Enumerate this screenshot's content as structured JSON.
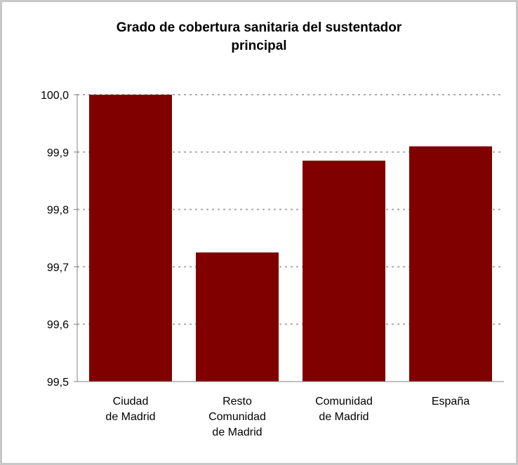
{
  "chart_data": {
    "type": "bar",
    "title_lines": [
      "Grado de cobertura sanitaria del sustentador",
      "principal"
    ],
    "categories": [
      [
        "Ciudad",
        "de Madrid"
      ],
      [
        "Resto",
        "Comunidad",
        "de Madrid"
      ],
      [
        "Comunidad",
        "de Madrid"
      ],
      [
        "España"
      ]
    ],
    "values": [
      100.0,
      99.725,
      99.885,
      99.91
    ],
    "ylim": [
      99.5,
      100.0
    ],
    "yticks": [
      99.5,
      99.6,
      99.7,
      99.8,
      99.9,
      100.0
    ],
    "ytick_labels": [
      "99,5",
      "99,6",
      "99,7",
      "99,8",
      "99,9",
      "100,0"
    ],
    "grid": true,
    "bar_color": "#800000",
    "grid_color": "#aaaaaa"
  }
}
